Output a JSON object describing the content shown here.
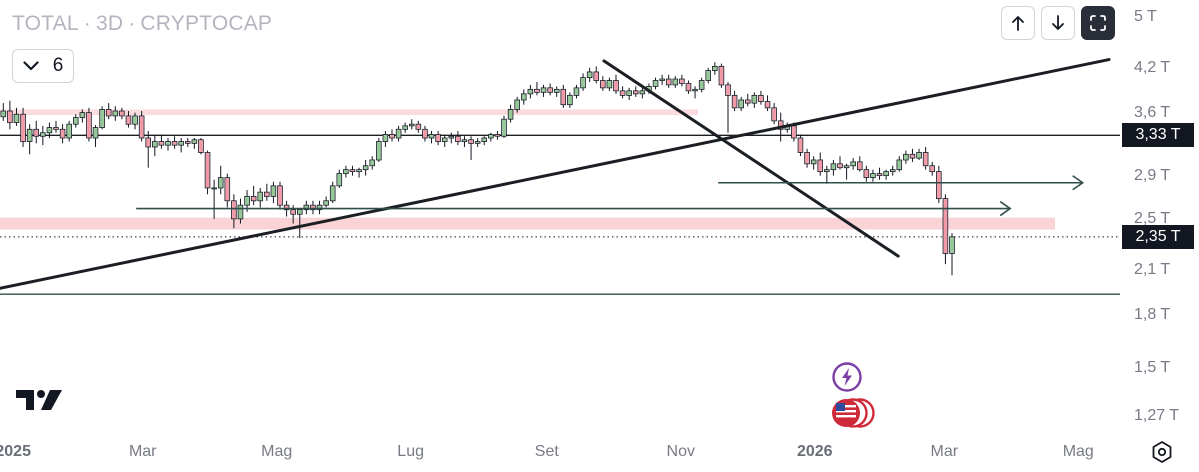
{
  "header": {
    "symbol": "TOTAL",
    "interval": "3D",
    "source": "CRYPTOCAP",
    "separator": "·",
    "indicator_count": "6",
    "collapse_icon": "chevron-down-icon"
  },
  "toolbar": {
    "up_icon": "arrow-up-icon",
    "down_icon": "arrow-down-icon",
    "fullscreen_icon": "fullscreen-icon"
  },
  "chart_data": {
    "type": "candlestick",
    "title": "TOTAL · 3D · CRYPTOCAP",
    "y_scale": "log",
    "ylim": [
      1.17,
      5.3
    ],
    "xlim": [
      "2024-12-26",
      "2026-05-20"
    ],
    "y_ticks": [
      {
        "value": 5,
        "label": "5 T"
      },
      {
        "value": 4.2,
        "label": "4,2 T"
      },
      {
        "value": 3.6,
        "label": "3,6 T"
      },
      {
        "value": 2.9,
        "label": "2,9 T"
      },
      {
        "value": 2.5,
        "label": "2,5 T"
      },
      {
        "value": 2.1,
        "label": "2,1 T"
      },
      {
        "value": 1.8,
        "label": "1,8 T"
      },
      {
        "value": 1.5,
        "label": "1,5 T"
      },
      {
        "value": 1.27,
        "label": "1,27 T"
      }
    ],
    "x_ticks": [
      {
        "date": "2025-01-01",
        "label": "2025",
        "bold": true
      },
      {
        "date": "2025-03-01",
        "label": "Mar",
        "bold": false
      },
      {
        "date": "2025-05-01",
        "label": "Mag",
        "bold": false
      },
      {
        "date": "2025-07-01",
        "label": "Lug",
        "bold": false
      },
      {
        "date": "2025-09-01",
        "label": "Set",
        "bold": false
      },
      {
        "date": "2025-11-01",
        "label": "Nov",
        "bold": false
      },
      {
        "date": "2026-01-01",
        "label": "2026",
        "bold": true
      },
      {
        "date": "2026-03-01",
        "label": "Mar",
        "bold": false
      },
      {
        "date": "2026-05-01",
        "label": "Mag",
        "bold": false
      }
    ],
    "price_labels": [
      {
        "value": 3.33,
        "label": "3,33 T"
      },
      {
        "value": 2.35,
        "label": "2,35 T"
      }
    ],
    "candle_interval_days": 3,
    "candle_start": "2024-12-26",
    "candles": [
      [
        3.55,
        3.72,
        3.5,
        3.62
      ],
      [
        3.62,
        3.75,
        3.4,
        3.48
      ],
      [
        3.48,
        3.66,
        3.44,
        3.58
      ],
      [
        3.58,
        3.66,
        3.2,
        3.26
      ],
      [
        3.26,
        3.46,
        3.12,
        3.4
      ],
      [
        3.4,
        3.5,
        3.24,
        3.32
      ],
      [
        3.32,
        3.44,
        3.22,
        3.36
      ],
      [
        3.36,
        3.48,
        3.3,
        3.42
      ],
      [
        3.42,
        3.5,
        3.36,
        3.4
      ],
      [
        3.4,
        3.46,
        3.24,
        3.3
      ],
      [
        3.3,
        3.5,
        3.26,
        3.46
      ],
      [
        3.46,
        3.58,
        3.42,
        3.54
      ],
      [
        3.54,
        3.64,
        3.48,
        3.6
      ],
      [
        3.6,
        3.66,
        3.26,
        3.3
      ],
      [
        3.3,
        3.45,
        3.2,
        3.42
      ],
      [
        3.42,
        3.68,
        3.4,
        3.64
      ],
      [
        3.64,
        3.72,
        3.52,
        3.56
      ],
      [
        3.56,
        3.68,
        3.5,
        3.62
      ],
      [
        3.62,
        3.66,
        3.52,
        3.56
      ],
      [
        3.56,
        3.62,
        3.42,
        3.46
      ],
      [
        3.46,
        3.6,
        3.4,
        3.56
      ],
      [
        3.56,
        3.62,
        3.26,
        3.3
      ],
      [
        3.3,
        3.38,
        2.98,
        3.2
      ],
      [
        3.2,
        3.34,
        3.1,
        3.26
      ],
      [
        3.26,
        3.34,
        3.18,
        3.22
      ],
      [
        3.22,
        3.3,
        3.16,
        3.26
      ],
      [
        3.26,
        3.32,
        3.18,
        3.22
      ],
      [
        3.22,
        3.3,
        3.14,
        3.26
      ],
      [
        3.26,
        3.3,
        3.2,
        3.24
      ],
      [
        3.24,
        3.3,
        3.18,
        3.28
      ],
      [
        3.28,
        3.3,
        3.12,
        3.14
      ],
      [
        3.14,
        3.16,
        2.72,
        2.78
      ],
      [
        2.78,
        2.86,
        2.5,
        2.78
      ],
      [
        2.78,
        3.0,
        2.72,
        2.88
      ],
      [
        2.88,
        2.92,
        2.6,
        2.66
      ],
      [
        2.66,
        2.72,
        2.42,
        2.5
      ],
      [
        2.5,
        2.68,
        2.46,
        2.62
      ],
      [
        2.62,
        2.76,
        2.56,
        2.7
      ],
      [
        2.7,
        2.8,
        2.62,
        2.66
      ],
      [
        2.66,
        2.78,
        2.6,
        2.74
      ],
      [
        2.74,
        2.82,
        2.66,
        2.7
      ],
      [
        2.7,
        2.84,
        2.64,
        2.8
      ],
      [
        2.8,
        2.84,
        2.58,
        2.62
      ],
      [
        2.62,
        2.66,
        2.52,
        2.58
      ],
      [
        2.58,
        2.62,
        2.46,
        2.54
      ],
      [
        2.54,
        2.58,
        2.34,
        2.58
      ],
      [
        2.58,
        2.66,
        2.54,
        2.62
      ],
      [
        2.62,
        2.66,
        2.54,
        2.58
      ],
      [
        2.58,
        2.66,
        2.54,
        2.62
      ],
      [
        2.62,
        2.7,
        2.6,
        2.66
      ],
      [
        2.66,
        2.84,
        2.64,
        2.8
      ],
      [
        2.8,
        2.96,
        2.78,
        2.92
      ],
      [
        2.92,
        3.0,
        2.88,
        2.96
      ],
      [
        2.96,
        3.0,
        2.9,
        2.94
      ],
      [
        2.94,
        2.98,
        2.88,
        2.96
      ],
      [
        2.96,
        3.06,
        2.9,
        3.0
      ],
      [
        3.0,
        3.1,
        2.96,
        3.06
      ],
      [
        3.06,
        3.3,
        3.04,
        3.26
      ],
      [
        3.26,
        3.38,
        3.2,
        3.34
      ],
      [
        3.34,
        3.4,
        3.26,
        3.3
      ],
      [
        3.3,
        3.44,
        3.26,
        3.4
      ],
      [
        3.4,
        3.48,
        3.36,
        3.44
      ],
      [
        3.44,
        3.52,
        3.4,
        3.46
      ],
      [
        3.46,
        3.5,
        3.36,
        3.4
      ],
      [
        3.4,
        3.44,
        3.26,
        3.3
      ],
      [
        3.3,
        3.38,
        3.24,
        3.34
      ],
      [
        3.34,
        3.38,
        3.22,
        3.26
      ],
      [
        3.26,
        3.34,
        3.2,
        3.3
      ],
      [
        3.3,
        3.36,
        3.24,
        3.32
      ],
      [
        3.32,
        3.38,
        3.22,
        3.26
      ],
      [
        3.26,
        3.32,
        3.2,
        3.28
      ],
      [
        3.28,
        3.32,
        3.06,
        3.24
      ],
      [
        3.24,
        3.3,
        3.2,
        3.26
      ],
      [
        3.26,
        3.32,
        3.22,
        3.3
      ],
      [
        3.3,
        3.36,
        3.26,
        3.34
      ],
      [
        3.34,
        3.38,
        3.28,
        3.32
      ],
      [
        3.32,
        3.56,
        3.3,
        3.52
      ],
      [
        3.52,
        3.7,
        3.48,
        3.64
      ],
      [
        3.64,
        3.8,
        3.6,
        3.76
      ],
      [
        3.76,
        3.9,
        3.7,
        3.84
      ],
      [
        3.84,
        3.96,
        3.78,
        3.9
      ],
      [
        3.9,
        4.0,
        3.82,
        3.86
      ],
      [
        3.86,
        3.96,
        3.8,
        3.92
      ],
      [
        3.92,
        3.98,
        3.82,
        3.86
      ],
      [
        3.86,
        3.94,
        3.8,
        3.9
      ],
      [
        3.9,
        3.96,
        3.66,
        3.7
      ],
      [
        3.7,
        3.86,
        3.66,
        3.82
      ],
      [
        3.82,
        3.96,
        3.78,
        3.92
      ],
      [
        3.92,
        4.12,
        3.88,
        4.06
      ],
      [
        4.06,
        4.2,
        4.0,
        4.14
      ],
      [
        4.14,
        4.22,
        3.98,
        4.02
      ],
      [
        4.02,
        4.08,
        3.88,
        3.92
      ],
      [
        3.92,
        4.06,
        3.88,
        4.02
      ],
      [
        4.02,
        4.1,
        3.84,
        3.88
      ],
      [
        3.88,
        3.94,
        3.78,
        3.82
      ],
      [
        3.82,
        3.92,
        3.76,
        3.88
      ],
      [
        3.88,
        3.94,
        3.8,
        3.84
      ],
      [
        3.84,
        3.92,
        3.78,
        3.88
      ],
      [
        3.88,
        3.98,
        3.84,
        3.94
      ],
      [
        3.94,
        4.06,
        3.9,
        4.02
      ],
      [
        4.02,
        4.1,
        3.96,
        4.04
      ],
      [
        4.04,
        4.1,
        3.92,
        3.96
      ],
      [
        3.96,
        4.08,
        3.92,
        4.04
      ],
      [
        4.04,
        4.1,
        3.94,
        3.98
      ],
      [
        3.98,
        4.02,
        3.84,
        3.88
      ],
      [
        3.88,
        3.94,
        3.78,
        3.9
      ],
      [
        3.9,
        4.06,
        3.86,
        4.02
      ],
      [
        4.02,
        4.2,
        3.98,
        4.16
      ],
      [
        4.16,
        4.28,
        4.1,
        4.22
      ],
      [
        4.22,
        4.26,
        3.92,
        3.96
      ],
      [
        3.96,
        4.0,
        3.36,
        3.82
      ],
      [
        3.82,
        3.88,
        3.62,
        3.66
      ],
      [
        3.66,
        3.8,
        3.62,
        3.76
      ],
      [
        3.76,
        3.84,
        3.68,
        3.72
      ],
      [
        3.72,
        3.86,
        3.66,
        3.82
      ],
      [
        3.82,
        3.88,
        3.7,
        3.74
      ],
      [
        3.74,
        3.82,
        3.62,
        3.66
      ],
      [
        3.66,
        3.72,
        3.46,
        3.5
      ],
      [
        3.5,
        3.6,
        3.26,
        3.4
      ],
      [
        3.4,
        3.48,
        3.36,
        3.44
      ],
      [
        3.44,
        3.48,
        3.26,
        3.3
      ],
      [
        3.3,
        3.34,
        3.1,
        3.14
      ],
      [
        3.14,
        3.18,
        2.98,
        3.02
      ],
      [
        3.02,
        3.1,
        2.96,
        3.06
      ],
      [
        3.06,
        3.14,
        2.9,
        2.94
      ],
      [
        2.94,
        3.0,
        2.82,
        2.96
      ],
      [
        2.96,
        3.06,
        2.9,
        3.02
      ],
      [
        3.02,
        3.1,
        2.96,
        2.98
      ],
      [
        2.98,
        3.02,
        2.86,
        3.0
      ],
      [
        3.0,
        3.08,
        2.96,
        3.04
      ],
      [
        3.04,
        3.1,
        2.94,
        2.96
      ],
      [
        2.96,
        3.0,
        2.84,
        2.88
      ],
      [
        2.88,
        2.96,
        2.84,
        2.92
      ],
      [
        2.92,
        2.98,
        2.86,
        2.9
      ],
      [
        2.9,
        2.96,
        2.86,
        2.94
      ],
      [
        2.94,
        3.0,
        2.9,
        2.96
      ],
      [
        2.96,
        3.1,
        2.94,
        3.06
      ],
      [
        3.06,
        3.16,
        3.02,
        3.12
      ],
      [
        3.12,
        3.18,
        3.04,
        3.08
      ],
      [
        3.08,
        3.18,
        3.06,
        3.14
      ],
      [
        3.14,
        3.2,
        2.96,
        3.0
      ],
      [
        3.0,
        3.04,
        2.9,
        2.94
      ],
      [
        2.94,
        3.0,
        2.64,
        2.68
      ],
      [
        2.68,
        2.72,
        2.14,
        2.22
      ],
      [
        2.22,
        2.38,
        2.06,
        2.35
      ]
    ],
    "zones": [
      {
        "from": 3.57,
        "to": 3.64
      },
      {
        "from": 2.41,
        "to": 2.51
      }
    ],
    "hlines": [
      3.33,
      1.93
    ],
    "dotted_line": 2.35,
    "trendlines": [
      {
        "from": [
          "2024-12-26",
          1.97
        ],
        "to": [
          "2026-05-15",
          4.32
        ]
      },
      {
        "from": [
          "2025-09-27",
          4.3
        ],
        "to": [
          "2026-02-08",
          2.2
        ]
      }
    ],
    "rays": [
      {
        "from": [
          "2025-11-18",
          2.83
        ],
        "to": [
          "2026-05-03",
          2.83
        ]
      },
      {
        "from": [
          "2025-02-26",
          2.59
        ],
        "to": [
          "2026-03-31",
          2.59
        ]
      }
    ],
    "up_color": "#57a35d",
    "down_color": "#ed4a68",
    "up_fill": "#b5dcb7",
    "down_fill": "#f6c2c9",
    "zone_color": "#f9d3d6",
    "line_color": "#1b1f24",
    "event_colors": {
      "lightning": "#7b3fa8",
      "flag": "#cf2a3a"
    }
  }
}
